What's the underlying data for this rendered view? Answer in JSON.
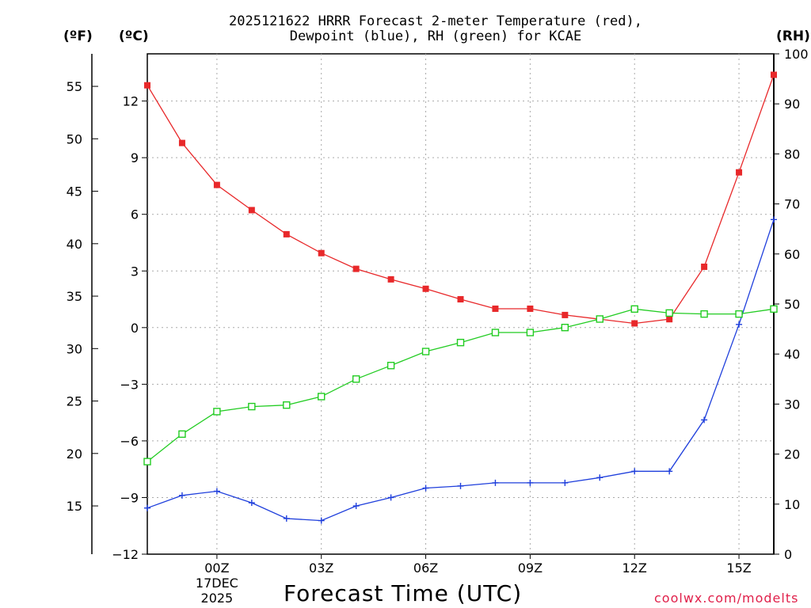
{
  "chart_data": {
    "type": "line",
    "title_line1": "2025121622 HRRR Forecast 2-meter Temperature (red),",
    "title_line2": "Dewpoint (blue), RH (green) for KCAE",
    "xlabel": "Forecast Time (UTC)",
    "credit": "coolwx.com/modelts",
    "units": {
      "f": "(ºF)",
      "c": "(ºC)",
      "rh": "(RH)"
    },
    "x_hours": [
      -2,
      -1,
      0,
      1,
      2,
      3,
      4,
      5,
      6,
      7,
      8,
      9,
      10,
      11,
      12,
      13,
      14,
      15,
      16
    ],
    "x_ticks": [
      {
        "hour": 0,
        "label": "00Z"
      },
      {
        "hour": 3,
        "label": "03Z"
      },
      {
        "hour": 6,
        "label": "06Z"
      },
      {
        "hour": 9,
        "label": "09Z"
      },
      {
        "hour": 12,
        "label": "12Z"
      },
      {
        "hour": 15,
        "label": "15Z"
      }
    ],
    "date_label_line1": "17DEC",
    "date_label_line2": "2025",
    "c_axis": {
      "ylim": [
        -12,
        14.5
      ],
      "ticks": [
        12,
        9,
        6,
        3,
        0,
        -3,
        -6,
        -9,
        -12
      ]
    },
    "f_axis": {
      "ticks": [
        55,
        50,
        45,
        40,
        35,
        30,
        25,
        20,
        15
      ]
    },
    "rh_axis": {
      "ylim": [
        0,
        100
      ],
      "ticks": [
        100,
        90,
        80,
        70,
        60,
        50,
        40,
        30,
        20,
        10,
        0
      ]
    },
    "series": [
      {
        "name": "2-meter Temperature (ºF)",
        "axis": "f",
        "color": "#e8282a",
        "marker": "filled-square",
        "values": [
          55.1,
          49.6,
          45.6,
          43.2,
          40.9,
          39.1,
          37.6,
          36.6,
          35.7,
          34.7,
          33.8,
          33.8,
          33.2,
          32.8,
          32.4,
          32.8,
          37.8,
          46.8,
          56.1
        ]
      },
      {
        "name": "Dewpoint (ºF)",
        "axis": "f",
        "color": "#1f3fdc",
        "marker": "plus",
        "values": [
          14.8,
          16.0,
          16.4,
          15.3,
          13.8,
          13.6,
          15.0,
          15.8,
          16.7,
          16.9,
          17.2,
          17.2,
          17.2,
          17.7,
          18.3,
          18.3,
          23.2,
          32.3,
          42.3
        ]
      },
      {
        "name": "Relative Humidity (%)",
        "axis": "rh",
        "color": "#22cc22",
        "marker": "open-square",
        "values": [
          18.5,
          24.0,
          28.5,
          29.5,
          29.8,
          31.5,
          35.0,
          37.7,
          40.5,
          42.3,
          44.3,
          44.3,
          45.3,
          47.0,
          49.0,
          48.2,
          48.0,
          48.0,
          49.0
        ]
      }
    ]
  }
}
